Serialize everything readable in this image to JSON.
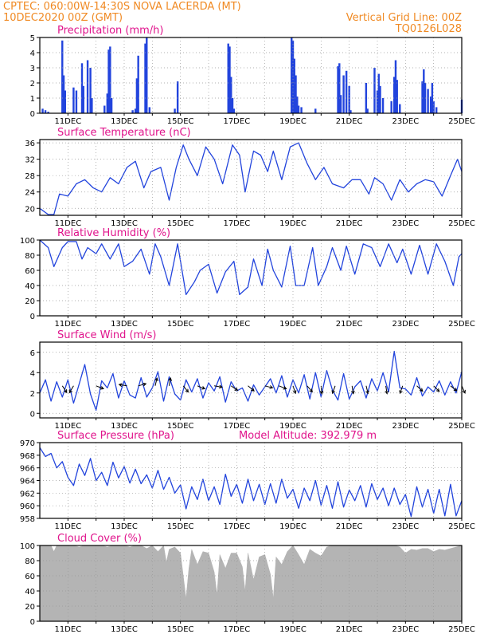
{
  "header": {
    "line1": "CPTEC:   060:00W-14:30S   NOVA LACERDA (MT)",
    "line2": "10DEC2020 00Z (GMT)",
    "grid_note": "Vertical Grid Line: 00Z",
    "run_code": "TQ0126L028"
  },
  "colors": {
    "header": "#f08a24",
    "title": "#e0148c",
    "series": "#2244dd",
    "cloud": "#b4b4b4",
    "grid": "#999999"
  },
  "chart_data": [
    {
      "id": "precipitation",
      "type": "bar",
      "title": "Precipitation (mm/h)",
      "ylim": [
        0,
        5
      ],
      "yticks": [
        0,
        1,
        2,
        3,
        4,
        5
      ],
      "x_range_days": [
        10,
        25
      ],
      "xtick_labels": [
        "11DEC",
        "13DEC",
        "15DEC",
        "17DEC",
        "19DEC",
        "21DEC",
        "23DEC",
        "25DEC"
      ],
      "x": [
        10.1,
        10.2,
        10.3,
        10.8,
        10.85,
        10.9,
        11.2,
        11.3,
        11.5,
        11.55,
        11.7,
        11.8,
        11.85,
        12.3,
        12.4,
        12.45,
        12.5,
        12.55,
        13.3,
        13.4,
        13.45,
        13.5,
        13.75,
        13.8,
        13.9,
        14.8,
        14.9,
        16.7,
        16.75,
        16.8,
        16.85,
        16.9,
        18.95,
        19.0,
        19.05,
        19.1,
        19.15,
        19.2,
        19.3,
        19.8,
        20.6,
        20.65,
        20.7,
        20.8,
        20.9,
        21.0,
        21.05,
        21.6,
        21.65,
        21.9,
        22.0,
        22.05,
        22.1,
        22.2,
        22.5,
        22.6,
        22.65,
        22.7,
        22.8,
        23.6,
        23.65,
        23.7,
        23.8,
        23.9,
        23.95,
        24.0,
        24.1,
        25.0
      ],
      "values": [
        0.3,
        0.2,
        0.1,
        4.8,
        2.5,
        1.5,
        1.7,
        1.5,
        3.3,
        1.8,
        3.5,
        3.0,
        1.0,
        0.5,
        1.3,
        4.2,
        4.4,
        1.0,
        0.2,
        0.3,
        2.3,
        3.8,
        4.6,
        5.0,
        0.4,
        0.3,
        2.1,
        4.6,
        4.4,
        2.4,
        1.0,
        0.3,
        5.0,
        4.8,
        3.6,
        2.5,
        1.1,
        0.5,
        0.4,
        0.3,
        3.1,
        3.3,
        1.2,
        2.5,
        2.8,
        1.8,
        0.2,
        2.0,
        0.3,
        3.0,
        1.5,
        2.6,
        1.8,
        1.0,
        0.8,
        2.4,
        3.5,
        2.2,
        0.6,
        2.1,
        2.9,
        2.0,
        1.6,
        1.1,
        2.0,
        0.8,
        0.4,
        0.9
      ]
    },
    {
      "id": "temperature",
      "type": "line",
      "title": "Surface Temperature (nC)",
      "ylim": [
        18,
        36
      ],
      "yticks": [
        20,
        24,
        28,
        32,
        36
      ],
      "x_range_days": [
        10,
        25
      ],
      "xtick_labels": [
        "11DEC",
        "13DEC",
        "15DEC",
        "17DEC",
        "19DEC",
        "21DEC",
        "23DEC",
        "25DEC"
      ],
      "series": [
        {
          "x": [
            10.0,
            10.3,
            10.5,
            10.7,
            11.0,
            11.3,
            11.6,
            11.9,
            12.2,
            12.5,
            12.8,
            13.1,
            13.4,
            13.7,
            13.95,
            14.3,
            14.6,
            14.85,
            15.1,
            15.3,
            15.6,
            15.9,
            16.2,
            16.5,
            16.85,
            17.1,
            17.3,
            17.6,
            17.85,
            18.1,
            18.3,
            18.6,
            18.9,
            19.2,
            19.5,
            19.8,
            20.1,
            20.4,
            20.8,
            21.1,
            21.4,
            21.7,
            21.9,
            22.2,
            22.5,
            22.8,
            23.1,
            23.4,
            23.7,
            24.0,
            24.3,
            24.6,
            24.85,
            25.0
          ],
          "values": [
            20.0,
            18.5,
            18.5,
            23.5,
            23.0,
            26.0,
            27.0,
            25.0,
            24.0,
            27.5,
            26.0,
            30.0,
            31.5,
            25.0,
            29.0,
            30.0,
            22.0,
            30.0,
            35.5,
            32.0,
            28.0,
            35.0,
            32.0,
            26.0,
            35.5,
            33.0,
            24.0,
            34.0,
            33.0,
            29.0,
            34.0,
            27.0,
            35.0,
            36.0,
            31.0,
            27.0,
            30.0,
            26.0,
            25.0,
            27.0,
            27.0,
            23.5,
            27.5,
            26.0,
            22.0,
            27.0,
            24.0,
            26.0,
            27.0,
            26.5,
            23.0,
            28.0,
            32.0,
            29.0
          ]
        }
      ]
    },
    {
      "id": "humidity",
      "type": "line",
      "title": "Relative Humidity (%)",
      "ylim": [
        0,
        100
      ],
      "yticks": [
        0,
        20,
        40,
        60,
        80,
        100
      ],
      "x_range_days": [
        10,
        25
      ],
      "xtick_labels": [
        "11DEC",
        "13DEC",
        "15DEC",
        "17DEC",
        "19DEC",
        "21DEC",
        "23DEC",
        "25DEC"
      ],
      "series": [
        {
          "x": [
            10.0,
            10.3,
            10.5,
            10.8,
            11.0,
            11.3,
            11.5,
            11.7,
            12.0,
            12.2,
            12.5,
            12.8,
            13.0,
            13.3,
            13.6,
            13.9,
            14.1,
            14.3,
            14.6,
            14.9,
            15.2,
            15.5,
            15.7,
            16.0,
            16.3,
            16.6,
            16.9,
            17.1,
            17.4,
            17.6,
            17.9,
            18.1,
            18.3,
            18.6,
            18.9,
            19.1,
            19.4,
            19.7,
            19.9,
            20.2,
            20.4,
            20.7,
            20.9,
            21.2,
            21.5,
            21.8,
            22.1,
            22.4,
            22.7,
            22.9,
            23.2,
            23.5,
            23.8,
            24.1,
            24.4,
            24.7,
            24.9,
            25.0
          ],
          "values": [
            100,
            90,
            65,
            90,
            98,
            98,
            75,
            90,
            82,
            95,
            75,
            95,
            65,
            72,
            88,
            55,
            95,
            78,
            40,
            95,
            28,
            45,
            60,
            68,
            30,
            58,
            72,
            28,
            38,
            75,
            40,
            88,
            60,
            38,
            92,
            40,
            40,
            90,
            40,
            65,
            90,
            60,
            92,
            55,
            95,
            90,
            65,
            95,
            70,
            88,
            55,
            93,
            55,
            95,
            72,
            40,
            78,
            82
          ]
        }
      ]
    },
    {
      "id": "wind",
      "type": "line",
      "title": "Surface Wind (m/s)",
      "ylim": [
        -0.5,
        7
      ],
      "yticks": [
        0,
        2,
        4,
        6
      ],
      "x_range_days": [
        10,
        25
      ],
      "xtick_labels": [
        "11DEC",
        "13DEC",
        "15DEC",
        "17DEC",
        "19DEC",
        "21DEC",
        "23DEC",
        "25DEC"
      ],
      "series": [
        {
          "x": [
            10.0,
            10.2,
            10.4,
            10.6,
            10.8,
            11.0,
            11.2,
            11.4,
            11.6,
            11.8,
            12.0,
            12.2,
            12.4,
            12.6,
            12.8,
            13.0,
            13.2,
            13.4,
            13.6,
            13.8,
            14.0,
            14.2,
            14.4,
            14.6,
            14.8,
            15.0,
            15.2,
            15.4,
            15.6,
            15.8,
            16.0,
            16.2,
            16.4,
            16.6,
            16.8,
            17.0,
            17.2,
            17.4,
            17.6,
            17.8,
            18.0,
            18.2,
            18.4,
            18.6,
            18.8,
            19.0,
            19.2,
            19.4,
            19.6,
            19.8,
            20.0,
            20.2,
            20.4,
            20.6,
            20.8,
            21.0,
            21.2,
            21.4,
            21.6,
            21.8,
            22.0,
            22.2,
            22.4,
            22.6,
            22.8,
            23.0,
            23.2,
            23.4,
            23.6,
            23.8,
            24.0,
            24.2,
            24.4,
            24.6,
            24.8,
            25.0
          ],
          "values": [
            2.0,
            3.3,
            1.2,
            3.1,
            1.6,
            3.3,
            1.0,
            2.9,
            4.8,
            1.9,
            0.3,
            3.2,
            2.5,
            3.9,
            1.5,
            3.2,
            1.8,
            1.5,
            3.5,
            1.6,
            2.5,
            4.1,
            1.2,
            3.6,
            1.9,
            1.3,
            3.3,
            2.1,
            3.4,
            1.5,
            3.0,
            2.2,
            3.6,
            1.1,
            3.1,
            2.2,
            2.5,
            1.2,
            2.8,
            1.8,
            2.6,
            3.4,
            2.0,
            3.7,
            1.6,
            3.3,
            2.0,
            3.8,
            1.4,
            4.0,
            1.6,
            4.2,
            2.3,
            1.3,
            3.9,
            1.4,
            2.6,
            3.2,
            1.5,
            3.4,
            2.2,
            4.0,
            2.1,
            6.1,
            2.5,
            2.4,
            1.8,
            3.5,
            1.7,
            2.6,
            2.1,
            3.2,
            1.8,
            3.1,
            2.0,
            4.1
          ]
        }
      ],
      "vectors": [
        {
          "x": 10.8,
          "u": 0.8,
          "v": -1.2
        },
        {
          "x": 11.2,
          "u": -0.6,
          "v": -1.0
        },
        {
          "x": 12.0,
          "u": 1.0,
          "v": -0.4
        },
        {
          "x": 13.1,
          "u": -1.2,
          "v": 0.2
        },
        {
          "x": 13.5,
          "u": 1.1,
          "v": 0.3
        },
        {
          "x": 14.1,
          "u": 0.3,
          "v": 1.2
        },
        {
          "x": 14.6,
          "u": 0.2,
          "v": 1.2
        },
        {
          "x": 15.1,
          "u": 0.8,
          "v": -1.0
        },
        {
          "x": 15.6,
          "u": 1.0,
          "v": -0.4
        },
        {
          "x": 16.2,
          "u": 1.2,
          "v": -0.2
        },
        {
          "x": 16.8,
          "u": 1.0,
          "v": -0.7
        },
        {
          "x": 17.4,
          "u": 0.6,
          "v": -0.5
        },
        {
          "x": 18.0,
          "u": 1.2,
          "v": -0.3
        },
        {
          "x": 18.5,
          "u": 1.0,
          "v": -0.4
        },
        {
          "x": 19.0,
          "u": 0.4,
          "v": -1.2
        },
        {
          "x": 19.5,
          "u": 0.8,
          "v": -0.9
        },
        {
          "x": 20.0,
          "u": 0.1,
          "v": -1.2
        },
        {
          "x": 20.5,
          "u": -0.4,
          "v": -1.1
        },
        {
          "x": 21.1,
          "u": 0.2,
          "v": -1.2
        },
        {
          "x": 21.6,
          "u": 0.3,
          "v": -1.2
        },
        {
          "x": 22.3,
          "u": 0.2,
          "v": -1.2
        },
        {
          "x": 22.9,
          "u": -0.4,
          "v": -1.1
        },
        {
          "x": 23.4,
          "u": 0.9,
          "v": -0.8
        },
        {
          "x": 24.0,
          "u": 0.8,
          "v": -0.8
        },
        {
          "x": 24.6,
          "u": 0.9,
          "v": -0.7
        },
        {
          "x": 25.0,
          "u": 0.5,
          "v": -1.1
        }
      ]
    },
    {
      "id": "pressure",
      "type": "line",
      "title": "Surface Pressure (hPa)",
      "annotation": "Model Altitude: 392.979 m",
      "ylim": [
        958,
        970
      ],
      "yticks": [
        958,
        960,
        962,
        964,
        966,
        968,
        970
      ],
      "x_range_days": [
        10,
        25
      ],
      "xtick_labels": [
        "11DEC",
        "13DEC",
        "15DEC",
        "17DEC",
        "19DEC",
        "21DEC",
        "23DEC",
        "25DEC"
      ],
      "series": [
        {
          "x": [
            10.0,
            10.2,
            10.4,
            10.6,
            10.8,
            11.0,
            11.2,
            11.4,
            11.6,
            11.8,
            12.0,
            12.2,
            12.4,
            12.6,
            12.8,
            13.0,
            13.2,
            13.4,
            13.6,
            13.8,
            14.0,
            14.2,
            14.4,
            14.6,
            14.8,
            15.0,
            15.2,
            15.4,
            15.6,
            15.8,
            16.0,
            16.2,
            16.4,
            16.6,
            16.8,
            17.0,
            17.2,
            17.4,
            17.6,
            17.8,
            18.0,
            18.2,
            18.4,
            18.6,
            18.8,
            19.0,
            19.2,
            19.4,
            19.6,
            19.8,
            20.0,
            20.2,
            20.4,
            20.6,
            20.8,
            21.0,
            21.2,
            21.4,
            21.6,
            21.8,
            22.0,
            22.2,
            22.4,
            22.6,
            22.8,
            23.0,
            23.2,
            23.4,
            23.6,
            23.8,
            24.0,
            24.2,
            24.4,
            24.6,
            24.8,
            25.0
          ],
          "values": [
            969.2,
            967.8,
            968.3,
            966.0,
            967.0,
            964.5,
            963.2,
            966.6,
            964.8,
            967.5,
            964.0,
            965.3,
            963.2,
            966.9,
            964.4,
            966.2,
            963.6,
            965.8,
            963.5,
            964.9,
            962.8,
            965.6,
            962.6,
            964.5,
            962.0,
            963.3,
            959.5,
            963.0,
            961.0,
            964.2,
            960.8,
            963.0,
            960.2,
            965.0,
            961.5,
            963.4,
            960.4,
            964.2,
            960.8,
            963.4,
            960.2,
            963.5,
            960.4,
            964.2,
            961.2,
            962.6,
            959.6,
            962.8,
            960.8,
            964.0,
            960.1,
            963.2,
            959.6,
            963.8,
            959.8,
            962.5,
            960.8,
            963.2,
            959.8,
            963.5,
            961.0,
            962.8,
            960.0,
            962.8,
            960.2,
            961.8,
            958.3,
            963.0,
            959.8,
            962.6,
            958.8,
            962.6,
            958.4,
            963.4,
            958.4,
            960.8
          ]
        }
      ]
    },
    {
      "id": "cloud",
      "type": "area",
      "title": "Cloud Cover (%)",
      "ylim": [
        0,
        100
      ],
      "yticks": [
        0,
        20,
        40,
        60,
        80,
        100
      ],
      "x_range_days": [
        10,
        25
      ],
      "xtick_labels": [
        "11DEC",
        "13DEC",
        "15DEC",
        "17DEC",
        "19DEC",
        "21DEC",
        "23DEC",
        "25DEC"
      ],
      "series": [
        {
          "x": [
            10.0,
            10.4,
            10.5,
            10.6,
            10.8,
            11.0,
            11.2,
            11.4,
            11.6,
            11.8,
            12.0,
            12.2,
            12.4,
            12.6,
            12.8,
            13.0,
            13.2,
            13.4,
            13.6,
            13.8,
            14.0,
            14.2,
            14.4,
            14.5,
            14.6,
            14.8,
            15.0,
            15.2,
            15.3,
            15.4,
            15.6,
            15.8,
            16.0,
            16.2,
            16.3,
            16.4,
            16.6,
            16.8,
            17.0,
            17.2,
            17.3,
            17.4,
            17.6,
            17.8,
            18.0,
            18.2,
            18.3,
            18.4,
            18.6,
            18.8,
            19.0,
            19.2,
            19.4,
            19.6,
            19.8,
            20.0,
            20.2,
            20.4,
            20.6,
            20.8,
            21.0,
            21.2,
            21.4,
            21.6,
            21.8,
            22.0,
            22.2,
            22.4,
            22.6,
            22.8,
            23.0,
            23.2,
            23.4,
            23.6,
            23.8,
            24.0,
            24.2,
            24.4,
            24.6,
            24.8,
            25.0
          ],
          "values": [
            100,
            100,
            92,
            100,
            100,
            100,
            100,
            98,
            100,
            100,
            100,
            100,
            98,
            100,
            100,
            100,
            98,
            100,
            100,
            96,
            100,
            92,
            100,
            78,
            95,
            98,
            90,
            30,
            70,
            95,
            75,
            92,
            90,
            65,
            35,
            88,
            70,
            90,
            90,
            72,
            40,
            90,
            55,
            85,
            88,
            62,
            30,
            85,
            75,
            92,
            100,
            88,
            75,
            95,
            90,
            86,
            98,
            100,
            100,
            100,
            100,
            100,
            100,
            100,
            100,
            100,
            100,
            100,
            100,
            98,
            90,
            95,
            94,
            96,
            96,
            92,
            95,
            94,
            96,
            98,
            100
          ]
        }
      ]
    }
  ]
}
